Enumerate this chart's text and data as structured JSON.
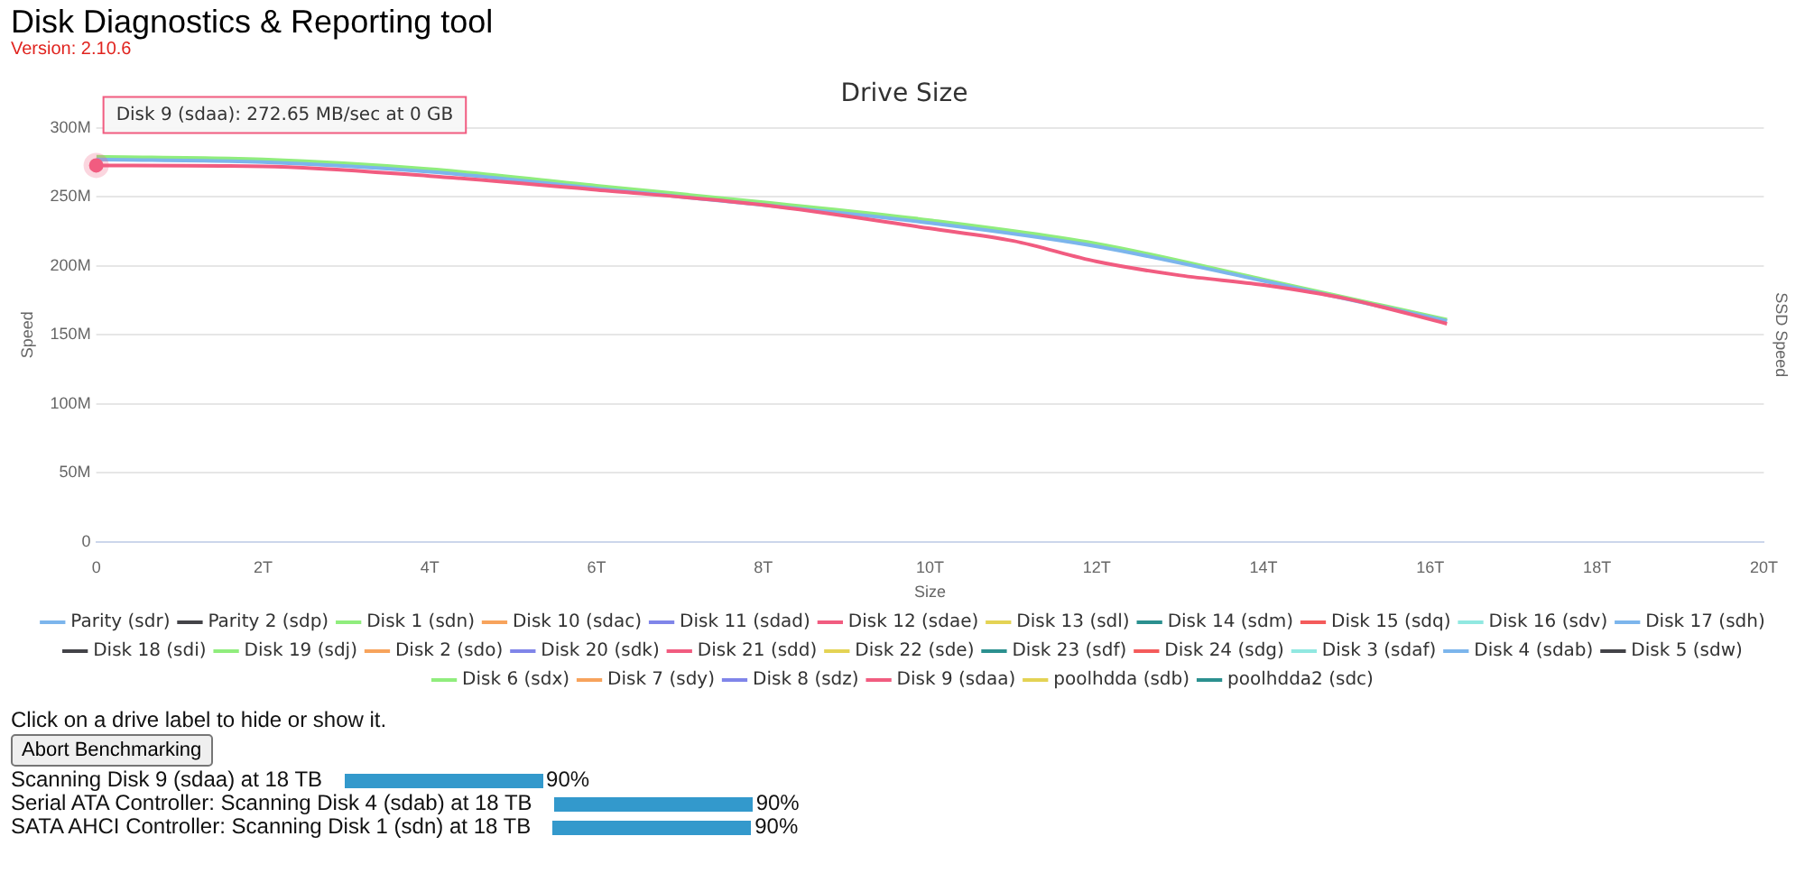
{
  "chart_data": {
    "type": "line",
    "title": "Drive Size",
    "xlabel": "Size",
    "ylabel": "Speed",
    "y2label": "SSD Speed",
    "xlim": [
      0,
      20
    ],
    "xticks": [
      0,
      {
        "value": 2,
        "label": "2T"
      },
      {
        "value": 4,
        "label": "4T"
      },
      {
        "value": 6,
        "label": "6T"
      },
      {
        "value": 8,
        "label": "8T"
      },
      {
        "value": 10,
        "label": "10T"
      },
      {
        "value": 12,
        "label": "12T"
      },
      {
        "value": 14,
        "label": "14T"
      },
      {
        "value": 16,
        "label": "16T"
      },
      {
        "value": 18,
        "label": "18T"
      },
      {
        "value": 20,
        "label": "20T"
      }
    ],
    "ylim": [
      0,
      300
    ],
    "yticks": [
      0,
      {
        "value": 50,
        "label": "50M"
      },
      {
        "value": 100,
        "label": "100M"
      },
      {
        "value": 150,
        "label": "150M"
      },
      {
        "value": 200,
        "label": "200M"
      },
      {
        "value": 250,
        "label": "250M"
      },
      {
        "value": 300,
        "label": "300M"
      }
    ],
    "grid": "y",
    "legend": "bottom",
    "marker": "none",
    "line_style": "solid",
    "series": [
      {
        "name": "Parity (sdr)",
        "color": "#7cb5ec"
      },
      {
        "name": "Parity 2 (sdp)",
        "color": "#434348"
      },
      {
        "name": "Disk 1 (sdn)",
        "color": "#90ed7d",
        "x": [
          0,
          2,
          4,
          6,
          8,
          10,
          12,
          14,
          16.2
        ],
        "values": [
          279,
          277,
          270,
          258,
          246,
          233,
          216,
          190,
          161
        ]
      },
      {
        "name": "Disk 10 (sdac)",
        "color": "#f7a35c"
      },
      {
        "name": "Disk 11 (sdad)",
        "color": "#8085e9"
      },
      {
        "name": "Disk 12 (sdae)",
        "color": "#f15c80"
      },
      {
        "name": "Disk 13 (sdl)",
        "color": "#e4d354"
      },
      {
        "name": "Disk 14 (sdm)",
        "color": "#2b908f"
      },
      {
        "name": "Disk 15 (sdq)",
        "color": "#f45b5b"
      },
      {
        "name": "Disk 16 (sdv)",
        "color": "#91e8e1"
      },
      {
        "name": "Disk 17 (sdh)",
        "color": "#7cb5ec"
      },
      {
        "name": "Disk 18 (sdi)",
        "color": "#434348"
      },
      {
        "name": "Disk 19 (sdj)",
        "color": "#90ed7d"
      },
      {
        "name": "Disk 2 (sdo)",
        "color": "#f7a35c"
      },
      {
        "name": "Disk 20 (sdk)",
        "color": "#8085e9"
      },
      {
        "name": "Disk 21 (sdd)",
        "color": "#f15c80"
      },
      {
        "name": "Disk 22 (sde)",
        "color": "#e4d354"
      },
      {
        "name": "Disk 23 (sdf)",
        "color": "#2b908f"
      },
      {
        "name": "Disk 24 (sdg)",
        "color": "#f45b5b"
      },
      {
        "name": "Disk 3 (sdaf)",
        "color": "#91e8e1"
      },
      {
        "name": "Disk 4 (sdab)",
        "color": "#7cb5ec",
        "x": [
          0,
          2,
          4,
          6,
          8,
          10,
          12,
          14,
          16.2
        ],
        "values": [
          277,
          275,
          268,
          256,
          244,
          231,
          214,
          189,
          160
        ]
      },
      {
        "name": "Disk 5 (sdw)",
        "color": "#434348"
      },
      {
        "name": "Disk 6 (sdx)",
        "color": "#90ed7d"
      },
      {
        "name": "Disk 7 (sdy)",
        "color": "#f7a35c"
      },
      {
        "name": "Disk 8 (sdz)",
        "color": "#8085e9"
      },
      {
        "name": "Disk 9 (sdaa)",
        "color": "#f15c80",
        "x": [
          0,
          2,
          4,
          6,
          8,
          10,
          11,
          12,
          13,
          14,
          15,
          16.2
        ],
        "values": [
          272.65,
          272,
          265,
          255,
          244,
          227,
          218,
          203,
          193,
          186,
          176,
          158
        ]
      },
      {
        "name": "poolhdda (sdb)",
        "color": "#e4d354"
      },
      {
        "name": "poolhdda2 (sdc)",
        "color": "#2b908f"
      }
    ],
    "annotations": [
      "Disk Diagnostics & Reporting tool",
      "Version: 2.10.6",
      {
        "text": "Disk 9 (sdaa): 272.65 MB/sec at 0 GB",
        "x": 0,
        "y": 272.65
      },
      "Click on a drive label to hide or show it.",
      "Abort Benchmarking",
      "Scanning Disk 9 (sdaa) at 18 TB",
      "90%",
      "Serial ATA Controller: Scanning Disk 4 (sdab) at 18 TB",
      "90%",
      "SATA AHCI Controller: Scanning Disk 1 (sdn) at 18 TB",
      "90%"
    ]
  }
}
